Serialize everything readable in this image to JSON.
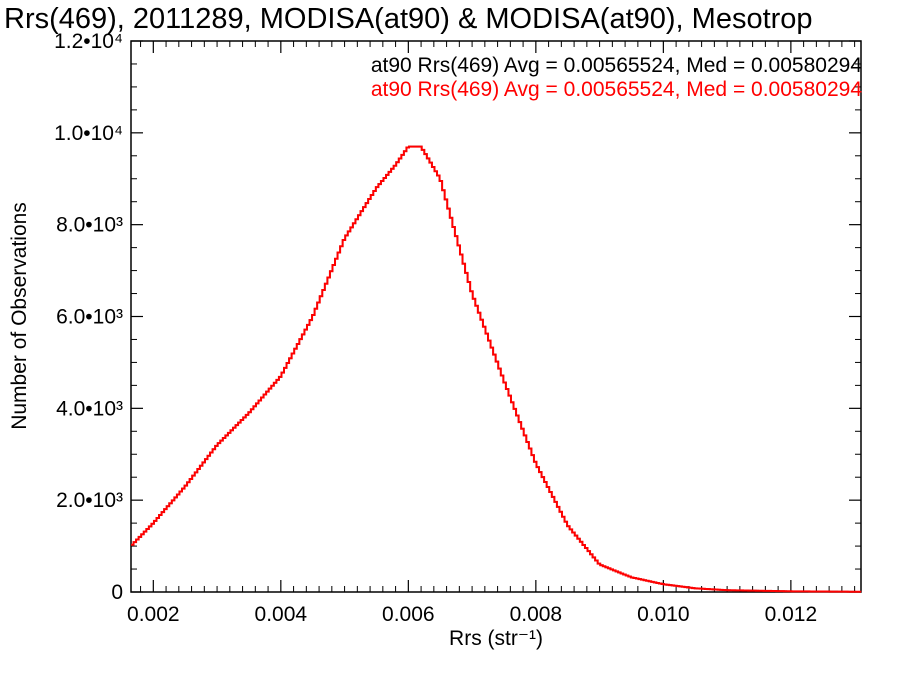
{
  "chart_data": {
    "type": "histogram",
    "title": "Rrs(469), 2011289, MODISA(at90) & MODISA(at90), Mesotrop",
    "xlabel": "Rrs (str⁻¹)",
    "ylabel": "Number of Observations",
    "xlim": [
      0.00165,
      0.0131
    ],
    "ylim": [
      0,
      12000
    ],
    "x_tick_labels": [
      "0.002",
      "0.004",
      "0.006",
      "0.008",
      "0.010",
      "0.012"
    ],
    "x_ticks": [
      0.002,
      0.004,
      0.006,
      0.008,
      0.01,
      0.012
    ],
    "y_ticks": [
      0,
      2000,
      4000,
      6000,
      8000,
      10000,
      12000
    ],
    "y_tick_labels": [
      "0",
      "2.0•10³",
      "4.0•10³",
      "6.0•10³",
      "8.0•10³",
      "1.0•10⁴",
      "1.2•10⁴"
    ],
    "grid": false,
    "legend_position": "top-right",
    "series": [
      {
        "name": "at90 Rrs(469) Avg = 0.00565524, Med = 0.00580294",
        "color": "#000000",
        "x": [
          0.00165,
          0.002,
          0.0025,
          0.003,
          0.0035,
          0.004,
          0.0045,
          0.005,
          0.0055,
          0.0058,
          0.006,
          0.0062,
          0.0065,
          0.0068,
          0.007,
          0.0075,
          0.008,
          0.0085,
          0.009,
          0.0095,
          0.01,
          0.0105,
          0.011,
          0.012,
          0.0131
        ],
        "y": [
          1000,
          1500,
          2300,
          3200,
          3900,
          4700,
          6000,
          7700,
          8800,
          9300,
          9700,
          9700,
          9000,
          7500,
          6500,
          4600,
          2800,
          1450,
          600,
          320,
          170,
          80,
          40,
          15,
          5
        ]
      },
      {
        "name": "at90 Rrs(469) Avg = 0.00565524, Med = 0.00580294",
        "color": "#ff0000",
        "x": [
          0.00165,
          0.002,
          0.0025,
          0.003,
          0.0035,
          0.004,
          0.0045,
          0.005,
          0.0055,
          0.0058,
          0.006,
          0.0062,
          0.0065,
          0.0068,
          0.007,
          0.0075,
          0.008,
          0.0085,
          0.009,
          0.0095,
          0.01,
          0.0105,
          0.011,
          0.012,
          0.0131
        ],
        "y": [
          1000,
          1500,
          2300,
          3200,
          3900,
          4700,
          6000,
          7700,
          8800,
          9300,
          9700,
          9700,
          9000,
          7500,
          6500,
          4600,
          2800,
          1450,
          600,
          320,
          170,
          80,
          40,
          15,
          5
        ]
      }
    ]
  }
}
